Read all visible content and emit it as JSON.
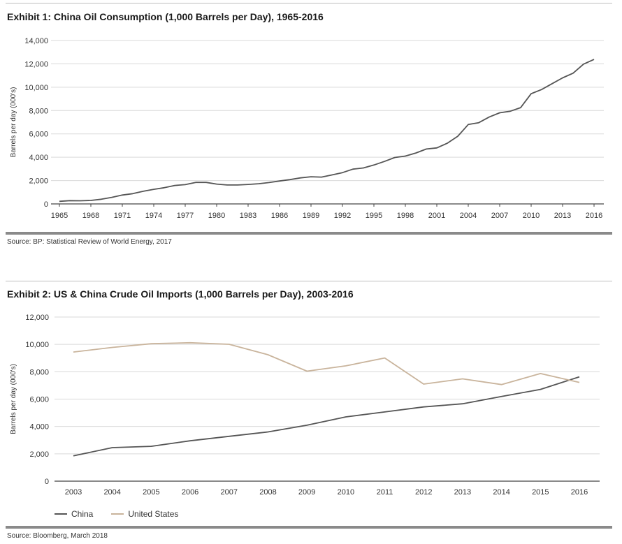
{
  "exhibit1": {
    "title": "Exhibit 1: China Oil Consumption (1,000 Barrels per Day), 1965-2016",
    "source": "Source: BP: Statistical Review of World Energy, 2017"
  },
  "exhibit2": {
    "title": "Exhibit 2: US & China Crude Oil Imports (1,000 Barrels per Day), 2003-2016",
    "source": "Source: Bloomberg, March 2018"
  },
  "colors": {
    "china": "#555555",
    "united_states": "#c9b49c",
    "grid": "#d9d9d9",
    "axis": "#444444"
  },
  "chart_data": [
    {
      "type": "line",
      "title": "Exhibit 1: China Oil Consumption (1,000 Barrels per Day), 1965-2016",
      "ylabel": "Barrels per day (000's)",
      "xlabel": "",
      "xlim": [
        1965,
        2016
      ],
      "ylim": [
        0,
        14000
      ],
      "yticks": [
        0,
        2000,
        4000,
        6000,
        8000,
        10000,
        12000,
        14000
      ],
      "ytick_labels": [
        "0",
        "2,000",
        "4,000",
        "6,000",
        "8,000",
        "10,000",
        "12,000",
        "14,000"
      ],
      "xticks": [
        1965,
        1968,
        1971,
        1974,
        1977,
        1980,
        1983,
        1986,
        1989,
        1992,
        1995,
        1998,
        2001,
        2004,
        2007,
        2010,
        2013,
        2016
      ],
      "xtick_labels": [
        "1965",
        "1968",
        "1971",
        "1974",
        "1977",
        "1980",
        "1983",
        "1986",
        "1989",
        "1992",
        "1995",
        "1998",
        "2001",
        "2004",
        "2007",
        "2010",
        "2013",
        "2016"
      ],
      "grid": true,
      "series": [
        {
          "color": "#555555",
          "x": [
            1965,
            1966,
            1967,
            1968,
            1969,
            1970,
            1971,
            1972,
            1973,
            1974,
            1975,
            1976,
            1977,
            1978,
            1979,
            1980,
            1981,
            1982,
            1983,
            1984,
            1985,
            1986,
            1987,
            1988,
            1989,
            1990,
            1991,
            1992,
            1993,
            1994,
            1995,
            1996,
            1997,
            1998,
            1999,
            2000,
            2001,
            2002,
            2003,
            2004,
            2005,
            2006,
            2007,
            2008,
            2009,
            2010,
            2011,
            2012,
            2013,
            2014,
            2015,
            2016
          ],
          "values": [
            220,
            280,
            270,
            300,
            400,
            560,
            760,
            880,
            1080,
            1250,
            1390,
            1580,
            1650,
            1840,
            1840,
            1700,
            1620,
            1620,
            1670,
            1730,
            1830,
            1960,
            2080,
            2230,
            2330,
            2300,
            2480,
            2680,
            2980,
            3080,
            3330,
            3640,
            3980,
            4100,
            4360,
            4700,
            4800,
            5200,
            5800,
            6800,
            6960,
            7440,
            7810,
            7940,
            8250,
            9440,
            9800,
            10300,
            10800,
            11200,
            11980,
            12380
          ]
        }
      ]
    },
    {
      "type": "line",
      "title": "Exhibit 2: US & China Crude Oil Imports (1,000 Barrels per Day), 2003-2016",
      "ylabel": "Barrels per day (000's)",
      "xlabel": "",
      "ylim": [
        0,
        12000
      ],
      "yticks": [
        0,
        2000,
        4000,
        6000,
        8000,
        10000,
        12000
      ],
      "ytick_labels": [
        "0",
        "2,000",
        "4,000",
        "6,000",
        "8,000",
        "10,000",
        "12,000"
      ],
      "categories": [
        "2003",
        "2004",
        "2005",
        "2006",
        "2007",
        "2008",
        "2009",
        "2010",
        "2011",
        "2012",
        "2013",
        "2014",
        "2015",
        "2016"
      ],
      "grid": true,
      "legend_position": "bottom-left",
      "series": [
        {
          "name": "China",
          "color": "#555555",
          "values": [
            1850,
            2450,
            2550,
            2950,
            3280,
            3600,
            4090,
            4700,
            5060,
            5430,
            5660,
            6190,
            6710,
            7630
          ]
        },
        {
          "name": "United States",
          "color": "#c9b49c",
          "values": [
            9440,
            9780,
            10050,
            10120,
            10010,
            9240,
            8040,
            8430,
            9010,
            7100,
            7480,
            7060,
            7870,
            7220
          ]
        }
      ]
    }
  ]
}
